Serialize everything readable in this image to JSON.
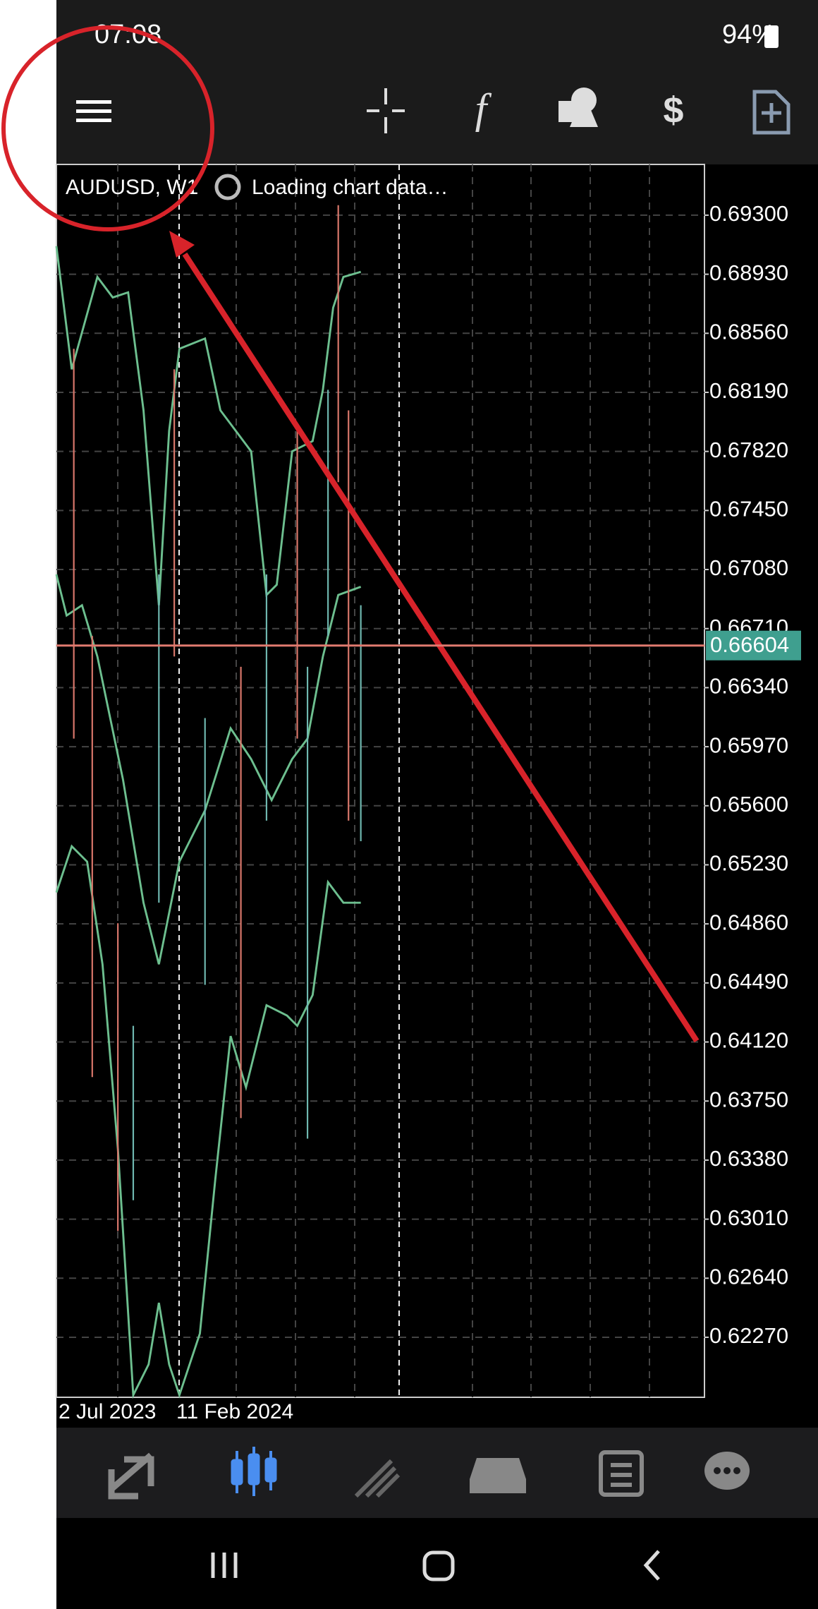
{
  "status_bar": {
    "time": "07:08",
    "battery": "94%"
  },
  "chart": {
    "symbol": "AUDUSD, W1",
    "status": "Loading chart data…",
    "ylim": [
      0.61894,
      0.69618
    ],
    "yticks": [
      {
        "value": 0.693,
        "label": "0.69300"
      },
      {
        "value": 0.6893,
        "label": "0.68930"
      },
      {
        "value": 0.6856,
        "label": "0.68560"
      },
      {
        "value": 0.6819,
        "label": "0.68190"
      },
      {
        "value": 0.6782,
        "label": "0.67820"
      },
      {
        "value": 0.6745,
        "label": "0.67450"
      },
      {
        "value": 0.6708,
        "label": "0.67080"
      },
      {
        "value": 0.6671,
        "label": "0.66710"
      },
      {
        "value": 0.6634,
        "label": "0.66340"
      },
      {
        "value": 0.6597,
        "label": "0.65970"
      },
      {
        "value": 0.656,
        "label": "0.65600"
      },
      {
        "value": 0.6523,
        "label": "0.65230"
      },
      {
        "value": 0.6486,
        "label": "0.64860"
      },
      {
        "value": 0.6449,
        "label": "0.64490"
      },
      {
        "value": 0.6412,
        "label": "0.64120"
      },
      {
        "value": 0.6375,
        "label": "0.63750"
      },
      {
        "value": 0.6338,
        "label": "0.63380"
      },
      {
        "value": 0.6301,
        "label": "0.63010"
      },
      {
        "value": 0.6264,
        "label": "0.62640"
      },
      {
        "value": 0.6227,
        "label": "0.62270"
      }
    ],
    "current_price": 0.66604,
    "x_labels": [
      "2 Jul 2023",
      "11 Feb 2024"
    ]
  }
}
